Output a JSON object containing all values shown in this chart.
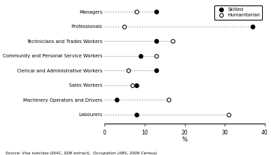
{
  "categories": [
    "Managers",
    "Professionals",
    "Technicians and Trades Workers",
    "Community and Personal Service Workers",
    "Clerical and Administrative Workers",
    "Sales Workers",
    "Machinery Operators and Drivers",
    "Labourers"
  ],
  "skilled": [
    13,
    37,
    13,
    9,
    13,
    8,
    3,
    8
  ],
  "humanitarian": [
    8,
    5,
    17,
    13,
    6,
    7,
    16,
    31
  ],
  "xlabel": "%",
  "xlim": [
    0,
    40
  ],
  "xticks": [
    0,
    10,
    20,
    30,
    40
  ],
  "source": "Source: Visa subclass (DIAC, SDB extract),  Occupation (ABS, 2006 Census)",
  "legend_skilled": "Skilled",
  "legend_humanitarian": "Humanitarian",
  "line_color": "#999999",
  "skilled_color": "#000000",
  "humanitarian_color": "#ffffff",
  "marker_size": 4,
  "background_color": "#ffffff"
}
